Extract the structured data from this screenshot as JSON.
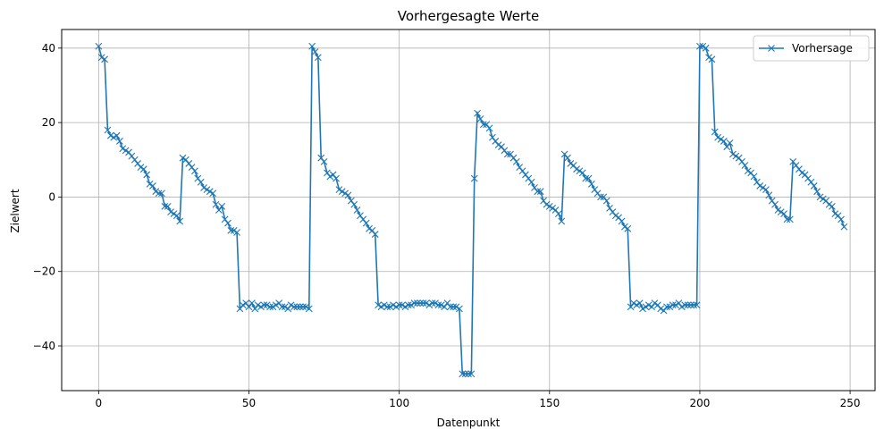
{
  "chart_data": {
    "type": "line",
    "title": "Vorhergesagte Werte",
    "xlabel": "Datenpunkt",
    "ylabel": "Zielwert",
    "xlim": [
      -12.3,
      258.3
    ],
    "ylim": [
      -52,
      45
    ],
    "xticks": [
      0,
      50,
      100,
      150,
      200,
      250
    ],
    "yticks": [
      -40,
      -20,
      0,
      20,
      40
    ],
    "grid": true,
    "legend_position": "top-right",
    "series": [
      {
        "name": "Vorhersage",
        "color": "#1f77b4",
        "marker": "x",
        "y": [
          40.5,
          37.5,
          37.0,
          18.0,
          16.5,
          16.0,
          16.5,
          15.0,
          13.0,
          12.5,
          12.0,
          11.0,
          10.0,
          9.0,
          8.0,
          7.5,
          6.0,
          3.5,
          3.0,
          1.5,
          1.0,
          1.0,
          -2.5,
          -2.5,
          -4.0,
          -4.5,
          -5.0,
          -6.5,
          10.5,
          10.0,
          9.0,
          8.0,
          7.0,
          5.0,
          4.0,
          2.5,
          2.0,
          1.5,
          1.0,
          -2.0,
          -3.5,
          -2.5,
          -6.0,
          -7.0,
          -9.0,
          -9.0,
          -9.5,
          -30.0,
          -29.0,
          -28.5,
          -29.5,
          -28.5,
          -30.0,
          -29.0,
          -29.5,
          -29.0,
          -29.0,
          -29.5,
          -29.5,
          -29.0,
          -28.5,
          -29.5,
          -29.5,
          -30.0,
          -29.0,
          -29.5,
          -29.5,
          -29.5,
          -29.5,
          -29.5,
          -30.0,
          40.5,
          39.0,
          37.5,
          10.5,
          9.5,
          6.5,
          5.5,
          6.0,
          5.0,
          2.0,
          1.5,
          1.0,
          0.5,
          -1.0,
          -2.0,
          -3.5,
          -5.0,
          -6.0,
          -7.0,
          -8.5,
          -9.0,
          -10.0,
          -29.0,
          -29.5,
          -29.0,
          -29.5,
          -29.5,
          -29.0,
          -29.5,
          -29.0,
          -29.0,
          -29.5,
          -29.0,
          -29.0,
          -28.5,
          -28.5,
          -28.5,
          -28.5,
          -28.5,
          -29.0,
          -28.5,
          -28.5,
          -29.0,
          -29.0,
          -29.5,
          -28.5,
          -29.5,
          -29.5,
          -29.5,
          -30.0,
          -47.5,
          -47.5,
          -47.5,
          -47.5,
          5.0,
          22.5,
          21.0,
          19.5,
          19.5,
          18.5,
          16.0,
          15.0,
          14.0,
          13.5,
          12.5,
          11.5,
          11.5,
          10.5,
          9.5,
          8.0,
          7.0,
          6.0,
          5.0,
          4.0,
          2.5,
          1.5,
          1.5,
          -1.0,
          -2.0,
          -2.5,
          -3.0,
          -3.5,
          -4.5,
          -6.5,
          11.5,
          10.5,
          9.0,
          8.5,
          7.5,
          7.0,
          6.5,
          5.0,
          5.0,
          3.5,
          2.0,
          1.0,
          0.0,
          0.0,
          -1.0,
          -3.0,
          -4.0,
          -5.0,
          -5.5,
          -6.5,
          -8.0,
          -8.5,
          -29.5,
          -28.5,
          -29.0,
          -28.5,
          -30.0,
          -29.5,
          -29.0,
          -29.5,
          -28.5,
          -29.0,
          -30.0,
          -30.5,
          -29.5,
          -29.5,
          -29.0,
          -29.0,
          -28.5,
          -29.5,
          -29.0,
          -29.0,
          -29.0,
          -29.0,
          -29.0,
          40.5,
          40.5,
          40.0,
          37.5,
          37.0,
          17.5,
          16.0,
          15.5,
          15.0,
          13.5,
          14.5,
          11.5,
          11.0,
          10.5,
          9.5,
          8.5,
          7.0,
          6.5,
          5.5,
          4.0,
          3.0,
          2.5,
          2.0,
          0.5,
          -1.0,
          -2.0,
          -3.5,
          -4.0,
          -4.5,
          -6.0,
          -6.0,
          9.5,
          8.5,
          7.5,
          6.5,
          6.0,
          5.0,
          4.0,
          3.0,
          1.5,
          0.0,
          -0.5,
          -1.0,
          -2.0,
          -2.5,
          -4.5,
          -5.0,
          -6.0,
          -8.0
        ]
      }
    ]
  }
}
